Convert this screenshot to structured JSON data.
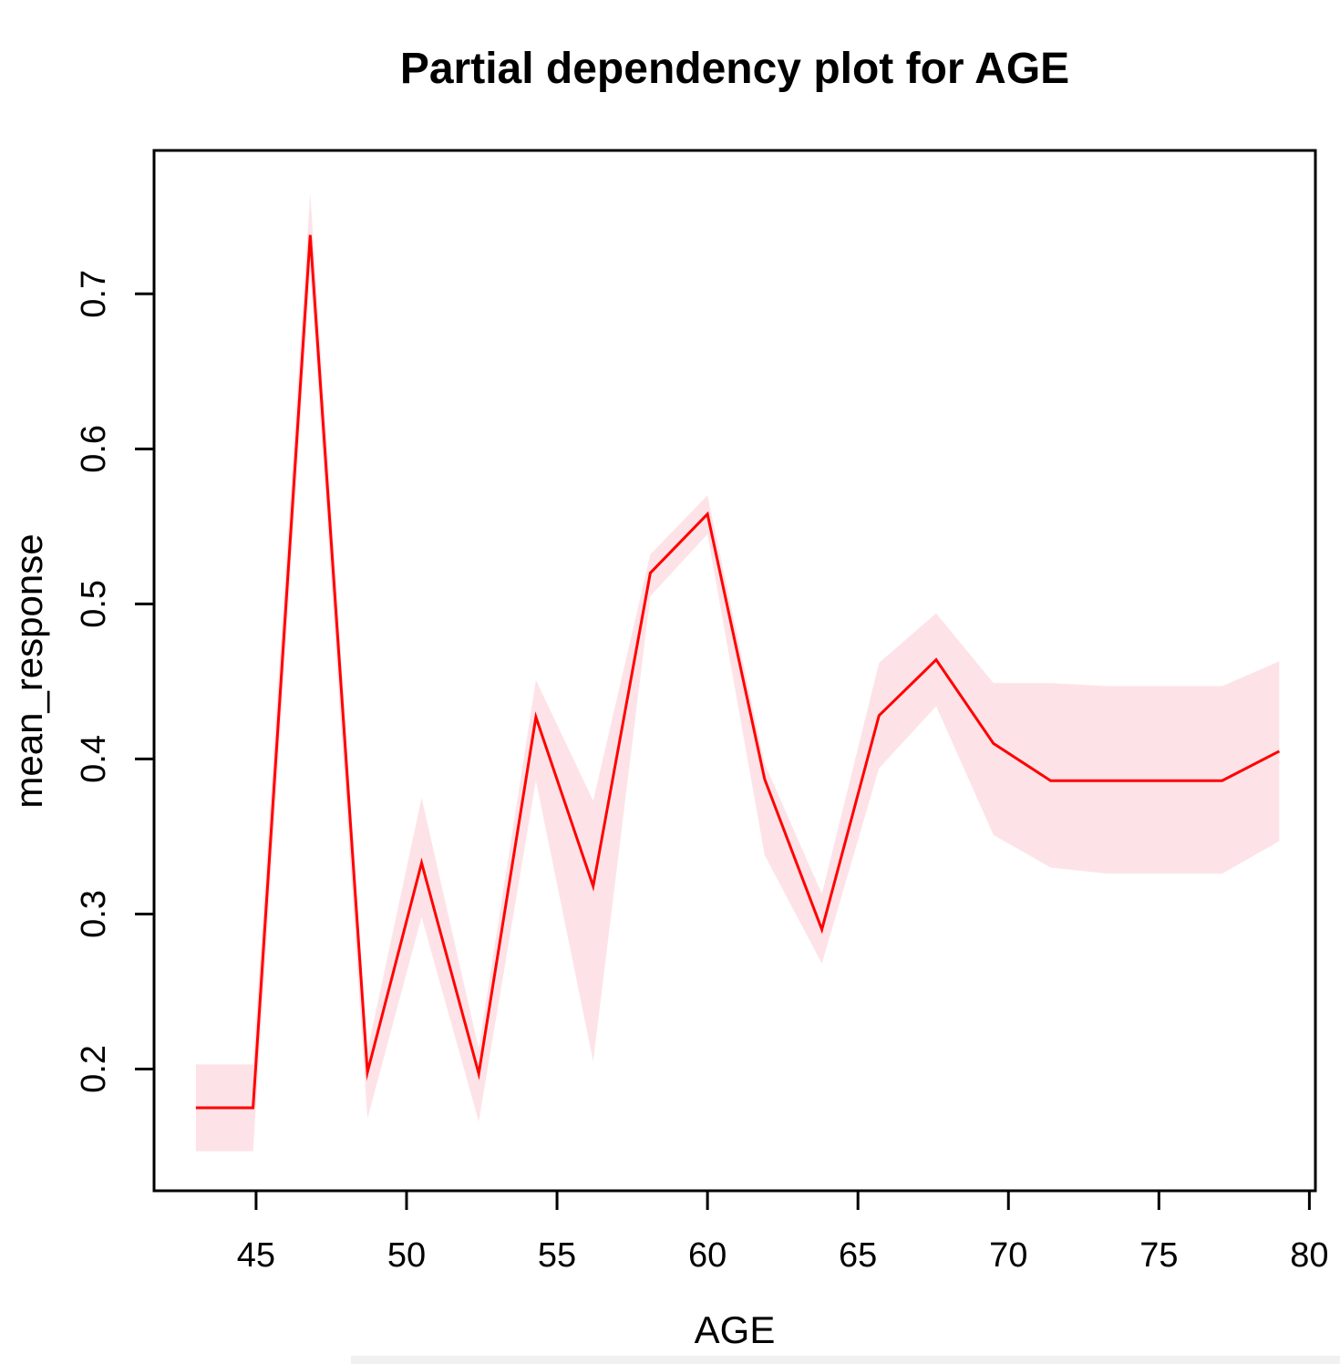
{
  "page": {
    "background_color": "#ffffff",
    "bottom_strip_color": "#f1f0f2"
  },
  "chart_data": {
    "type": "line",
    "title": "Partial dependency plot for AGE",
    "xlabel": "AGE",
    "ylabel": "mean_response",
    "x": [
      43.0,
      44.9,
      46.8,
      48.7,
      50.5,
      52.4,
      54.3,
      56.2,
      58.1,
      60.0,
      61.9,
      63.8,
      65.7,
      67.6,
      69.5,
      71.4,
      73.3,
      75.2,
      77.1,
      79.0
    ],
    "series": [
      {
        "name": "mean_response",
        "values": [
          0.175,
          0.175,
          0.738,
          0.198,
          0.333,
          0.197,
          0.427,
          0.318,
          0.52,
          0.558,
          0.387,
          0.29,
          0.428,
          0.464,
          0.41,
          0.386,
          0.386,
          0.386,
          0.386,
          0.405
        ]
      },
      {
        "name": "lower_bound",
        "values": [
          0.147,
          0.147,
          0.715,
          0.168,
          0.298,
          0.166,
          0.386,
          0.205,
          0.505,
          0.545,
          0.338,
          0.268,
          0.394,
          0.434,
          0.351,
          0.33,
          0.326,
          0.326,
          0.326,
          0.347
        ]
      },
      {
        "name": "upper_bound",
        "values": [
          0.203,
          0.203,
          0.765,
          0.212,
          0.375,
          0.213,
          0.451,
          0.373,
          0.532,
          0.57,
          0.397,
          0.313,
          0.462,
          0.494,
          0.449,
          0.449,
          0.447,
          0.447,
          0.447,
          0.463
        ]
      }
    ],
    "xlim": [
      41.61,
      80.2
    ],
    "ylim": [
      0.1215,
      0.7925
    ],
    "xticks": [
      45,
      50,
      55,
      60,
      65,
      70,
      75,
      80
    ],
    "xtick_labels": [
      "45",
      "50",
      "55",
      "60",
      "65",
      "70",
      "75",
      "80"
    ],
    "yticks": [
      0.2,
      0.3,
      0.4,
      0.5,
      0.6,
      0.7
    ],
    "ytick_labels": [
      "0.2",
      "0.3",
      "0.4",
      "0.5",
      "0.6",
      "0.7"
    ],
    "grid": false,
    "legend": "none",
    "line_color": "#ff0000",
    "band_color": "#fde3e7",
    "axis_color": "#000000"
  }
}
